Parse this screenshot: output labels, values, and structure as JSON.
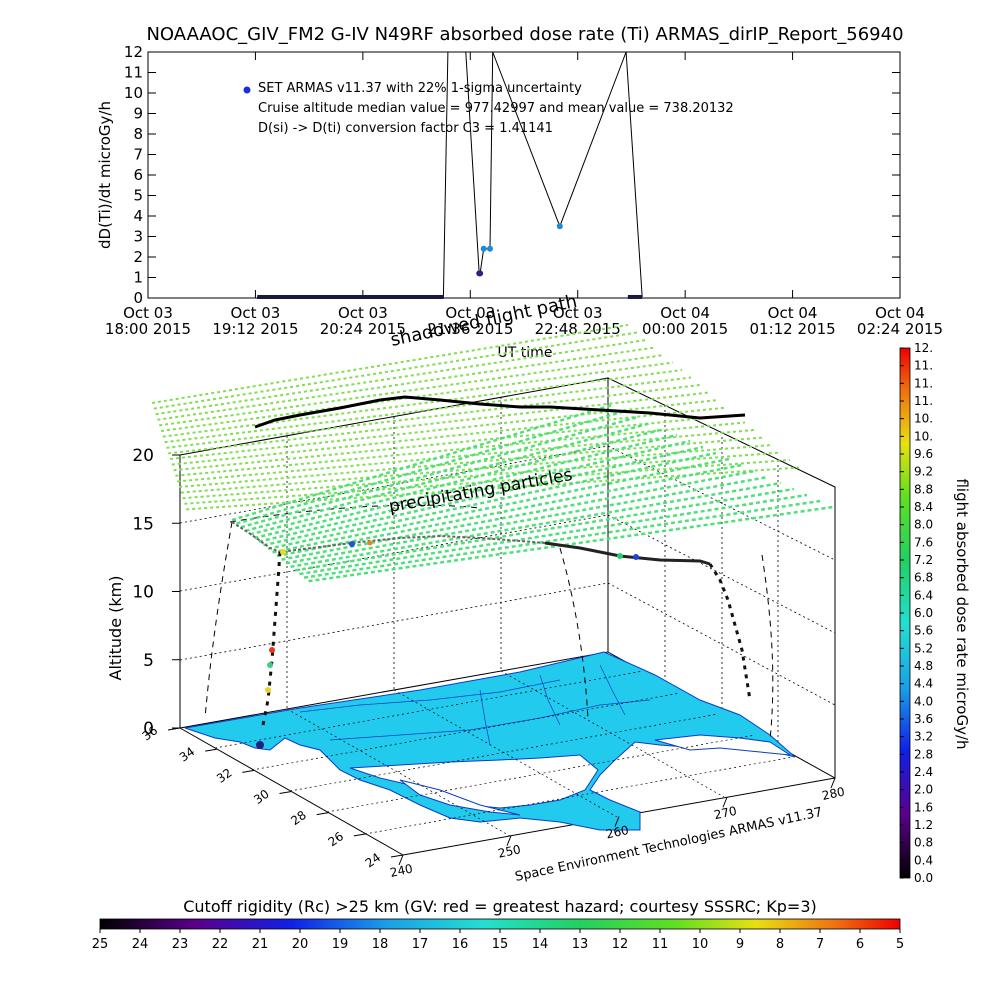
{
  "top_title": "NOAAAOC_GIV_FM2 G-IV   N49RF  absorbed dose rate (Ti) ARMAS_dirIP_Report_56940",
  "colors": {
    "data_point": "#1a2ee0",
    "measured_point": "#1b8ad8",
    "flight_path": "#000000",
    "shadow_grid": "#7ee04c",
    "precip_grid": "#4fe07a",
    "land": "#22cbee",
    "coast": "#0b3cc8",
    "axis": "#000000"
  },
  "legend": {
    "line1": "SET ARMAS v11.37 with 22% 1-sigma uncertainty",
    "line2": "Cruise altitude median value = 977.42997 and mean value = 738.20132",
    "line3": "D(si) -> D(ti) conversion factor C3 = 1.41141"
  },
  "labels_3d": {
    "shadow": "shadowed flight path",
    "precip": "precipitating particles",
    "altitude_axis": "Altitude (km)",
    "credit": "Space Environment Technologies ARMAS v11.37"
  },
  "chart_data": [
    {
      "type": "line",
      "title": "NOAAAOC_GIV_FM2 G-IV   N49RF  absorbed dose rate (Ti) ARMAS_dirIP_Report_56940",
      "ylabel": "dD(Ti)/dt microGy/h",
      "xlabel": "UT time",
      "ylim": [
        0,
        12
      ],
      "yticks": [
        "0",
        "1",
        "2",
        "3",
        "4",
        "5",
        "6",
        "7",
        "8",
        "9",
        "10",
        "11",
        "12"
      ],
      "xticks": [
        {
          "line1": "Oct 03",
          "line2": "18:00 2015"
        },
        {
          "line1": "Oct 03",
          "line2": "19:12 2015"
        },
        {
          "line1": "Oct 03",
          "line2": "20:24 2015"
        },
        {
          "line1": "Oct 03",
          "line2": "21:36 2015"
        },
        {
          "line1": "Oct 03",
          "line2": "22:48 2015"
        },
        {
          "line1": "Oct 04",
          "line2": "00:00 2015"
        },
        {
          "line1": "Oct 04",
          "line2": "01:12 2015"
        },
        {
          "line1": "Oct 04",
          "line2": "02:24 2015"
        }
      ],
      "grid": false,
      "legend_position": "top-left",
      "series": [
        {
          "time_unit": "hours UT since Oct 03 00:00",
          "x": [
            19.22,
            19.6,
            20.0,
            20.4,
            20.8,
            21.2,
            21.3,
            21.35,
            21.55,
            21.7,
            21.71,
            21.75,
            21.82,
            21.85,
            22.6,
            23.34,
            23.52
          ],
          "y": [
            0.05,
            0.05,
            0.05,
            0.05,
            0.05,
            0.05,
            0.05,
            12,
            12,
            1.2,
            1.2,
            2.4,
            2.4,
            12,
            3.5,
            12,
            0.05
          ]
        }
      ]
    },
    {
      "type": "scatter",
      "title": "",
      "zlabel": "Altitude (km)",
      "zlim": [
        0,
        20
      ],
      "zticks": [
        "0",
        "5",
        "10",
        "15",
        "20"
      ],
      "lat_ticks": [
        "36",
        "34",
        "32",
        "30",
        "28",
        "26",
        "24"
      ],
      "lon_ticks": [
        "240",
        "250",
        "260",
        "270",
        "280"
      ],
      "colorbar": {
        "label": "flight absorbed dose rate microGy/h",
        "ticks": [
          "0.0",
          "0.4",
          "0.8",
          "1.2",
          "1.6",
          "2.0",
          "2.4",
          "2.8",
          "3.2",
          "3.6",
          "4.0",
          "4.4",
          "4.8",
          "5.2",
          "5.6",
          "6.0",
          "6.4",
          "6.8",
          "7.2",
          "7.6",
          "8.0",
          "8.4",
          "8.8",
          "9.2",
          "9.6",
          "10.",
          "10.",
          "11.",
          "11.",
          "11.",
          "12."
        ]
      },
      "rigidity_bar": {
        "title": "Cutoff rigidity (Rc) >25 km (GV: red = greatest hazard; courtesy SSSRC; Kp=3)",
        "ticks": [
          "25",
          "24",
          "23",
          "22",
          "21",
          "20",
          "19",
          "18",
          "17",
          "16",
          "15",
          "14",
          "13",
          "12",
          "11",
          "10",
          "9",
          "8",
          "7",
          "6",
          "5"
        ]
      }
    }
  ]
}
